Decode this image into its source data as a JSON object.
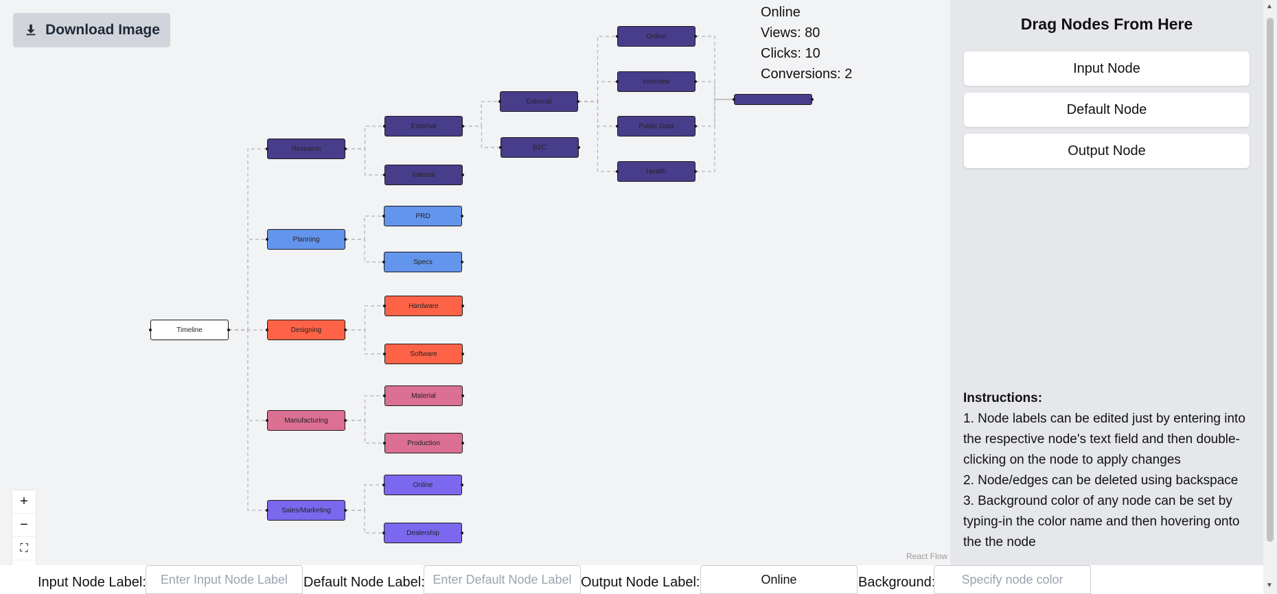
{
  "toolbar": {
    "download_label": "Download Image"
  },
  "stats": {
    "lines": [
      "Online",
      "Views: 80",
      "Clicks: 10",
      "Conversions: 2"
    ]
  },
  "colors": {
    "research": "#483d8b",
    "planning": "#6495ed",
    "designing": "#ff6347",
    "manufacturing": "#db7093",
    "sales": "#7b68ee",
    "default": "#ffffff"
  },
  "nodes": [
    {
      "id": "timeline",
      "label": "Timeline",
      "color": "default"
    },
    {
      "id": "research",
      "label": "Research",
      "color": "research"
    },
    {
      "id": "planning",
      "label": "Planning",
      "color": "planning"
    },
    {
      "id": "designing",
      "label": "Designing",
      "color": "designing"
    },
    {
      "id": "manufacturing",
      "label": "Manufacturing",
      "color": "manufacturing"
    },
    {
      "id": "sales",
      "label": "Sales/Marketing",
      "color": "sales"
    },
    {
      "id": "r-external",
      "label": "External",
      "color": "research"
    },
    {
      "id": "r-internal",
      "label": "Internal",
      "color": "research"
    },
    {
      "id": "prd",
      "label": "PRD",
      "color": "planning"
    },
    {
      "id": "specs",
      "label": "Specs",
      "color": "planning"
    },
    {
      "id": "hardware",
      "label": "Hardware",
      "color": "designing"
    },
    {
      "id": "software",
      "label": "Software",
      "color": "designing"
    },
    {
      "id": "material",
      "label": "Material",
      "color": "manufacturing"
    },
    {
      "id": "production",
      "label": "Production",
      "color": "manufacturing"
    },
    {
      "id": "s-online",
      "label": "Online",
      "color": "sales"
    },
    {
      "id": "dealership",
      "label": "Dealership",
      "color": "sales"
    },
    {
      "id": "ext-external",
      "label": "External",
      "color": "research"
    },
    {
      "id": "b2c",
      "label": "B2C",
      "color": "research"
    },
    {
      "id": "online",
      "label": "Online",
      "color": "research"
    },
    {
      "id": "interview",
      "label": "Interview",
      "color": "research"
    },
    {
      "id": "public-data",
      "label": "Public Data",
      "color": "research"
    },
    {
      "id": "health",
      "label": "Health",
      "color": "research"
    },
    {
      "id": "output",
      "label": "",
      "color": "research"
    }
  ],
  "edges": [
    [
      "timeline",
      "research"
    ],
    [
      "timeline",
      "planning"
    ],
    [
      "timeline",
      "designing"
    ],
    [
      "timeline",
      "manufacturing"
    ],
    [
      "timeline",
      "sales"
    ],
    [
      "research",
      "r-external"
    ],
    [
      "research",
      "r-internal"
    ],
    [
      "planning",
      "prd"
    ],
    [
      "planning",
      "specs"
    ],
    [
      "designing",
      "hardware"
    ],
    [
      "designing",
      "software"
    ],
    [
      "manufacturing",
      "material"
    ],
    [
      "manufacturing",
      "production"
    ],
    [
      "sales",
      "s-online"
    ],
    [
      "sales",
      "dealership"
    ],
    [
      "r-external",
      "ext-external"
    ],
    [
      "r-external",
      "b2c"
    ],
    [
      "ext-external",
      "online"
    ],
    [
      "ext-external",
      "interview"
    ],
    [
      "ext-external",
      "public-data"
    ],
    [
      "ext-external",
      "health"
    ],
    [
      "online",
      "output"
    ],
    [
      "interview",
      "output"
    ],
    [
      "public-data",
      "output"
    ],
    [
      "health",
      "output"
    ]
  ],
  "controls": {
    "zoom_in": "+",
    "zoom_out": "−",
    "fit": "⛶",
    "lock": "🔒"
  },
  "attribution": "React Flow",
  "sidebar": {
    "title": "Drag Nodes From Here",
    "items": [
      {
        "label": "Input Node"
      },
      {
        "label": "Default Node"
      },
      {
        "label": "Output Node"
      }
    ],
    "instructions_title": "Instructions:",
    "instructions": [
      "1. Node labels can be edited just by entering into the respective node's text field and then double-clicking on the node to apply changes",
      "2. Node/edges can be deleted using backspace",
      "3. Background color of any node can be set by typing-in the color name and then hovering onto the the node"
    ]
  },
  "bottom": {
    "input_label": "Input Node Label:",
    "input_placeholder": "Enter Input Node Label",
    "default_label": "Default Node Label:",
    "default_placeholder": "Enter Default Node Label",
    "output_label": "Output Node Label:",
    "output_value": "Online",
    "background_label": "Background:",
    "background_placeholder": "Specify node color"
  }
}
